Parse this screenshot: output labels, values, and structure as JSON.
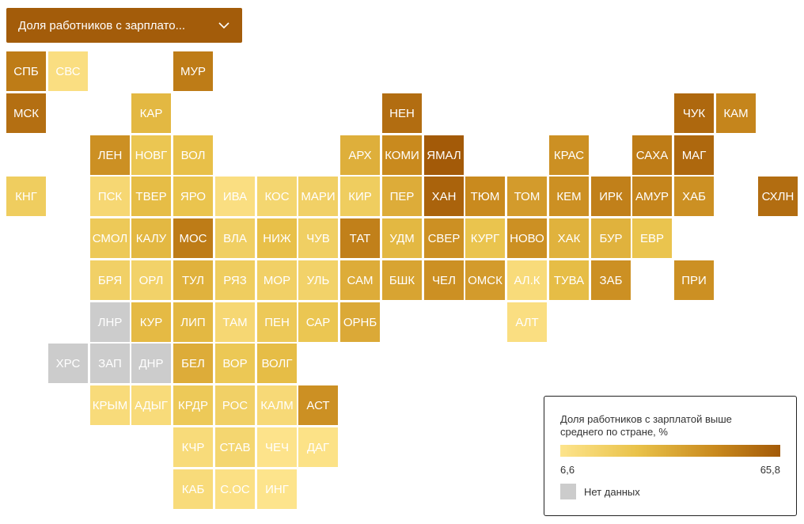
{
  "dropdown": {
    "label": "Доля работников с зарплато..."
  },
  "legend": {
    "title": "Доля работников с зарплатой выше среднего по стране, %",
    "min_label": "6,6",
    "max_label": "65,8",
    "min_value": 6.6,
    "max_value": 65.8,
    "nodata_label": "Нет данных",
    "gradient": [
      "#fde48c",
      "#e9c24a",
      "#c98a1e",
      "#a35a08"
    ],
    "nodata_color": "#cccccc"
  },
  "regions": [
    {
      "code": "СПБ",
      "col": 0,
      "row": 0,
      "value": 52
    },
    {
      "code": "СВС",
      "col": 1,
      "row": 0,
      "value": 10
    },
    {
      "code": "МУР",
      "col": 4,
      "row": 0,
      "value": 52
    },
    {
      "code": "МСК",
      "col": 0,
      "row": 1,
      "value": 57
    },
    {
      "code": "КАР",
      "col": 3,
      "row": 1,
      "value": 30
    },
    {
      "code": "НЕН",
      "col": 9,
      "row": 1,
      "value": 58
    },
    {
      "code": "ЧУК",
      "col": 16,
      "row": 1,
      "value": 60
    },
    {
      "code": "КАМ",
      "col": 17,
      "row": 1,
      "value": 48
    },
    {
      "code": "ЛЕН",
      "col": 2,
      "row": 2,
      "value": 44
    },
    {
      "code": "НОВГ",
      "col": 3,
      "row": 2,
      "value": 24
    },
    {
      "code": "ВОЛ",
      "col": 4,
      "row": 2,
      "value": 27
    },
    {
      "code": "АРХ",
      "col": 8,
      "row": 2,
      "value": 33
    },
    {
      "code": "КОМИ",
      "col": 9,
      "row": 2,
      "value": 46
    },
    {
      "code": "ЯМАЛ",
      "col": 10,
      "row": 2,
      "value": 65.8
    },
    {
      "code": "КРАС",
      "col": 13,
      "row": 2,
      "value": 44
    },
    {
      "code": "САХА",
      "col": 15,
      "row": 2,
      "value": 52
    },
    {
      "code": "МАГ",
      "col": 16,
      "row": 2,
      "value": 60
    },
    {
      "code": "КНГ",
      "col": 0,
      "row": 3,
      "value": 20
    },
    {
      "code": "ПСК",
      "col": 2,
      "row": 3,
      "value": 14
    },
    {
      "code": "ТВЕР",
      "col": 3,
      "row": 3,
      "value": 28
    },
    {
      "code": "ЯРО",
      "col": 4,
      "row": 3,
      "value": 25
    },
    {
      "code": "ИВА",
      "col": 5,
      "row": 3,
      "value": 10
    },
    {
      "code": "КОС",
      "col": 6,
      "row": 3,
      "value": 15
    },
    {
      "code": "МАРИ",
      "col": 7,
      "row": 3,
      "value": 18
    },
    {
      "code": "КИР",
      "col": 8,
      "row": 3,
      "value": 20
    },
    {
      "code": "ПЕР",
      "col": 9,
      "row": 3,
      "value": 34
    },
    {
      "code": "ХАН",
      "col": 10,
      "row": 3,
      "value": 62
    },
    {
      "code": "ТЮМ",
      "col": 11,
      "row": 3,
      "value": 46
    },
    {
      "code": "ТОМ",
      "col": 12,
      "row": 3,
      "value": 40
    },
    {
      "code": "КЕМ",
      "col": 13,
      "row": 3,
      "value": 44
    },
    {
      "code": "ИРК",
      "col": 14,
      "row": 3,
      "value": 50
    },
    {
      "code": "АМУР",
      "col": 15,
      "row": 3,
      "value": 48
    },
    {
      "code": "ХАБ",
      "col": 16,
      "row": 3,
      "value": 44
    },
    {
      "code": "СХЛН",
      "col": 18,
      "row": 3,
      "value": 58
    },
    {
      "code": "СМОЛ",
      "col": 2,
      "row": 4,
      "value": 22
    },
    {
      "code": "КАЛУ",
      "col": 3,
      "row": 4,
      "value": 30
    },
    {
      "code": "МОС",
      "col": 4,
      "row": 4,
      "value": 52
    },
    {
      "code": "ВЛА",
      "col": 5,
      "row": 4,
      "value": 19
    },
    {
      "code": "НИЖ",
      "col": 6,
      "row": 4,
      "value": 27
    },
    {
      "code": "ЧУВ",
      "col": 7,
      "row": 4,
      "value": 19
    },
    {
      "code": "ТАТ",
      "col": 8,
      "row": 4,
      "value": 50
    },
    {
      "code": "УДМ",
      "col": 9,
      "row": 4,
      "value": 30
    },
    {
      "code": "СВЕР",
      "col": 10,
      "row": 4,
      "value": 44
    },
    {
      "code": "КУРГ",
      "col": 11,
      "row": 4,
      "value": 25
    },
    {
      "code": "НОВО",
      "col": 12,
      "row": 4,
      "value": 44
    },
    {
      "code": "ХАК",
      "col": 13,
      "row": 4,
      "value": 32
    },
    {
      "code": "БУР",
      "col": 14,
      "row": 4,
      "value": 32
    },
    {
      "code": "ЕВР",
      "col": 15,
      "row": 4,
      "value": 25
    },
    {
      "code": "БРЯ",
      "col": 2,
      "row": 5,
      "value": 18
    },
    {
      "code": "ОРЛ",
      "col": 3,
      "row": 5,
      "value": 17
    },
    {
      "code": "ТУЛ",
      "col": 4,
      "row": 5,
      "value": 32
    },
    {
      "code": "РЯЗ",
      "col": 5,
      "row": 5,
      "value": 20
    },
    {
      "code": "МОР",
      "col": 6,
      "row": 5,
      "value": 18
    },
    {
      "code": "УЛЬ",
      "col": 7,
      "row": 5,
      "value": 17
    },
    {
      "code": "САМ",
      "col": 8,
      "row": 5,
      "value": 34
    },
    {
      "code": "БШК",
      "col": 9,
      "row": 5,
      "value": 37
    },
    {
      "code": "ЧЕЛ",
      "col": 10,
      "row": 5,
      "value": 44
    },
    {
      "code": "ОМСК",
      "col": 11,
      "row": 5,
      "value": 40
    },
    {
      "code": "АЛ.К",
      "col": 12,
      "row": 5,
      "value": 12
    },
    {
      "code": "ТУВА",
      "col": 13,
      "row": 5,
      "value": 28
    },
    {
      "code": "ЗАБ",
      "col": 14,
      "row": 5,
      "value": 44
    },
    {
      "code": "ПРИ",
      "col": 16,
      "row": 5,
      "value": 44
    },
    {
      "code": "ЛНР",
      "col": 2,
      "row": 6,
      "value": null
    },
    {
      "code": "КУР",
      "col": 3,
      "row": 6,
      "value": 29
    },
    {
      "code": "ЛИП",
      "col": 4,
      "row": 6,
      "value": 30
    },
    {
      "code": "ТАМ",
      "col": 5,
      "row": 6,
      "value": 14
    },
    {
      "code": "ПЕН",
      "col": 6,
      "row": 6,
      "value": 22
    },
    {
      "code": "САР",
      "col": 7,
      "row": 6,
      "value": 24
    },
    {
      "code": "ОРНБ",
      "col": 8,
      "row": 6,
      "value": 35
    },
    {
      "code": "АЛТ",
      "col": 12,
      "row": 6,
      "value": 10
    },
    {
      "code": "ХРС",
      "col": 1,
      "row": 7,
      "value": null
    },
    {
      "code": "ЗАП",
      "col": 2,
      "row": 7,
      "value": null
    },
    {
      "code": "ДНР",
      "col": 3,
      "row": 7,
      "value": null
    },
    {
      "code": "БЕЛ",
      "col": 4,
      "row": 7,
      "value": 34
    },
    {
      "code": "ВОР",
      "col": 5,
      "row": 7,
      "value": 23
    },
    {
      "code": "ВОЛГ",
      "col": 6,
      "row": 7,
      "value": 28
    },
    {
      "code": "КРЫМ",
      "col": 2,
      "row": 8,
      "value": 12
    },
    {
      "code": "АДЫГ",
      "col": 3,
      "row": 8,
      "value": 12
    },
    {
      "code": "КРДР",
      "col": 4,
      "row": 8,
      "value": 22
    },
    {
      "code": "РОС",
      "col": 5,
      "row": 8,
      "value": 18
    },
    {
      "code": "КАЛМ",
      "col": 6,
      "row": 8,
      "value": 13
    },
    {
      "code": "АСТ",
      "col": 7,
      "row": 8,
      "value": 44
    },
    {
      "code": "КЧР",
      "col": 4,
      "row": 9,
      "value": 12
    },
    {
      "code": "СТАВ",
      "col": 5,
      "row": 9,
      "value": 15
    },
    {
      "code": "ЧЕЧ",
      "col": 6,
      "row": 9,
      "value": 7
    },
    {
      "code": "ДАГ",
      "col": 7,
      "row": 9,
      "value": 8
    },
    {
      "code": "КАБ",
      "col": 4,
      "row": 10,
      "value": 12
    },
    {
      "code": "С.ОС",
      "col": 5,
      "row": 10,
      "value": 9
    },
    {
      "code": "ИНГ",
      "col": 6,
      "row": 10,
      "value": 6.6
    }
  ]
}
